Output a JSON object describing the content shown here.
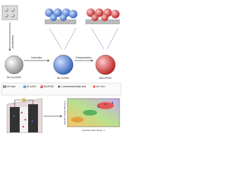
{
  "labels": {
    "solvothermal": "Solvothermal",
    "calcination": "Calcination",
    "phosphorization": "Phosphorization",
    "mof": "Ni-Co-MOF",
    "nico_nc": "Ni-Co/NC",
    "nicop_nc": "NiCoP/NC"
  },
  "legend": [
    "Ni Foam",
    "Ni-Co/NC",
    "NiCoP/NC",
    "2-Aminoterephthalic acid",
    "Ni²⁺/Co²⁺"
  ],
  "plot": {
    "x_label": "Specific power (W kg⁻¹)",
    "y_label": "Specific energy (Wh kg⁻¹)"
  }
}
